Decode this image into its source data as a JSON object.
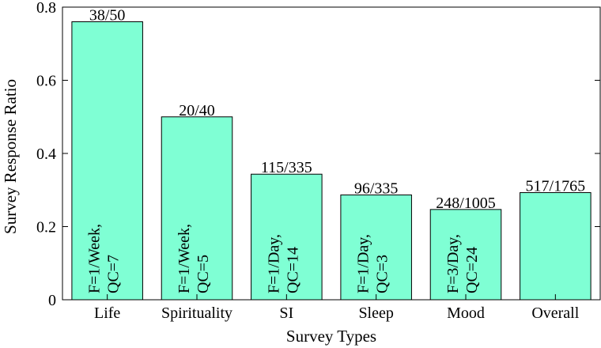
{
  "chart_data": {
    "type": "bar",
    "xlabel": "Survey Types",
    "ylabel": "Survey Response Ratio",
    "categories": [
      "Life",
      "Spirituality",
      "SI",
      "Sleep",
      "Mood",
      "Overall"
    ],
    "values": [
      0.76,
      0.5,
      0.3433,
      0.2866,
      0.2468,
      0.2929
    ],
    "data_labels": [
      "38/50",
      "20/40",
      "115/335",
      "96/335",
      "248/1005",
      "517/1765"
    ],
    "inner_labels": [
      [
        "F=1/Week,",
        "QC=7"
      ],
      [
        "F=1/Week,",
        "QC=5"
      ],
      [
        "F=1/Day,",
        "QC=14"
      ],
      [
        "F=1/Day,",
        "QC=3"
      ],
      [
        "F=3/Day,",
        "QC=24"
      ],
      []
    ],
    "ylim": [
      0,
      0.8
    ],
    "yticks": [
      "0",
      "0.2",
      "0.4",
      "0.6",
      "0.8"
    ],
    "bar_color": "#7fffd4",
    "grid": false,
    "legend": "none"
  }
}
